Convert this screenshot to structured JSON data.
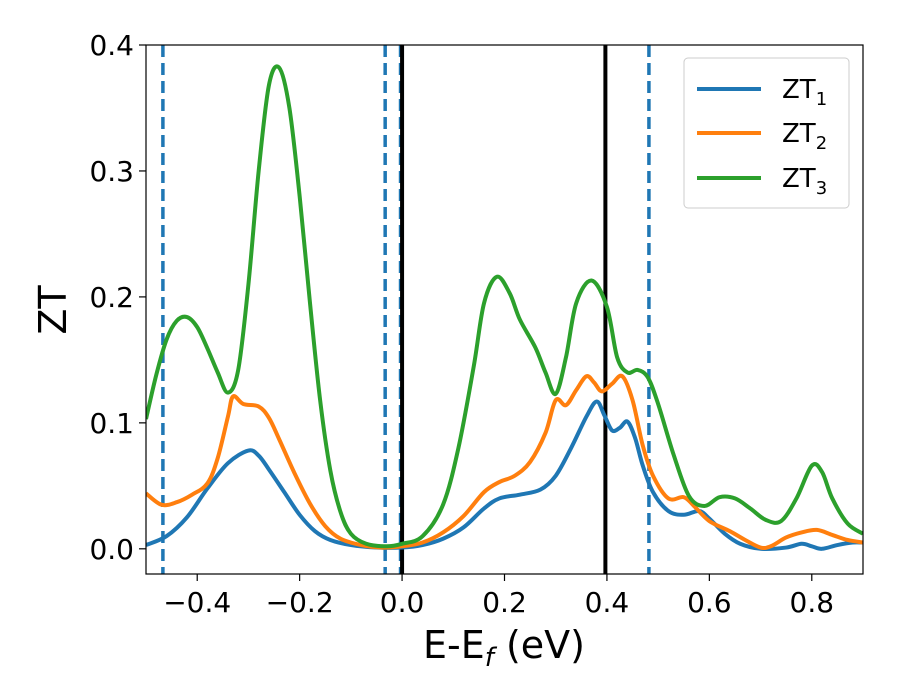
{
  "chart_data": {
    "type": "line",
    "xlabel": "E-E",
    "xlabel_sub": "f",
    "xlabel_unit": " (eV)",
    "ylabel": "ZT",
    "xlim": [
      -0.5,
      0.9
    ],
    "ylim": [
      -0.02,
      0.4
    ],
    "xticks": [
      -0.4,
      -0.2,
      0.0,
      0.2,
      0.4,
      0.6,
      0.8
    ],
    "xtick_labels": [
      "−0.4",
      "−0.2",
      "0.0",
      "0.2",
      "0.4",
      "0.6",
      "0.8"
    ],
    "yticks": [
      0.0,
      0.1,
      0.2,
      0.3,
      0.4
    ],
    "ytick_labels": [
      "0.0",
      "0.1",
      "0.2",
      "0.3",
      "0.4"
    ],
    "grid": false,
    "legend_position": "top-right",
    "vlines": [
      {
        "x": -0.467,
        "style": "dashed",
        "color": "#1f77b4"
      },
      {
        "x": -0.033,
        "style": "dashed",
        "color": "#1f77b4"
      },
      {
        "x": -0.003,
        "style": "dashed",
        "color": "#1f77b4"
      },
      {
        "x": 0.0,
        "style": "solid",
        "color": "#000000"
      },
      {
        "x": 0.397,
        "style": "solid",
        "color": "#000000"
      },
      {
        "x": 0.482,
        "style": "dashed",
        "color": "#1f77b4"
      }
    ],
    "series": [
      {
        "name": "ZT",
        "name_sub": "1",
        "color": "#1f77b4",
        "points": [
          [
            -0.5,
            0.003
          ],
          [
            -0.46,
            0.01
          ],
          [
            -0.42,
            0.025
          ],
          [
            -0.38,
            0.048
          ],
          [
            -0.34,
            0.068
          ],
          [
            -0.3,
            0.078
          ],
          [
            -0.28,
            0.074
          ],
          [
            -0.26,
            0.063
          ],
          [
            -0.23,
            0.045
          ],
          [
            -0.2,
            0.027
          ],
          [
            -0.17,
            0.014
          ],
          [
            -0.14,
            0.007
          ],
          [
            -0.1,
            0.003
          ],
          [
            -0.05,
            0.001
          ],
          [
            0.0,
            0.001
          ],
          [
            0.04,
            0.003
          ],
          [
            0.08,
            0.008
          ],
          [
            0.12,
            0.017
          ],
          [
            0.16,
            0.032
          ],
          [
            0.19,
            0.04
          ],
          [
            0.23,
            0.043
          ],
          [
            0.27,
            0.047
          ],
          [
            0.3,
            0.058
          ],
          [
            0.33,
            0.08
          ],
          [
            0.36,
            0.105
          ],
          [
            0.38,
            0.117
          ],
          [
            0.395,
            0.106
          ],
          [
            0.41,
            0.094
          ],
          [
            0.425,
            0.096
          ],
          [
            0.44,
            0.101
          ],
          [
            0.455,
            0.088
          ],
          [
            0.47,
            0.066
          ],
          [
            0.49,
            0.045
          ],
          [
            0.52,
            0.03
          ],
          [
            0.55,
            0.027
          ],
          [
            0.58,
            0.03
          ],
          [
            0.6,
            0.024
          ],
          [
            0.63,
            0.012
          ],
          [
            0.66,
            0.004
          ],
          [
            0.7,
            0.0
          ],
          [
            0.75,
            0.001
          ],
          [
            0.78,
            0.004
          ],
          [
            0.8,
            0.002
          ],
          [
            0.82,
            0.0
          ],
          [
            0.85,
            0.003
          ],
          [
            0.88,
            0.005
          ],
          [
            0.9,
            0.005
          ]
        ]
      },
      {
        "name": "ZT",
        "name_sub": "2",
        "color": "#ff7f0e",
        "points": [
          [
            -0.5,
            0.044
          ],
          [
            -0.47,
            0.035
          ],
          [
            -0.44,
            0.037
          ],
          [
            -0.41,
            0.043
          ],
          [
            -0.38,
            0.052
          ],
          [
            -0.36,
            0.072
          ],
          [
            -0.34,
            0.105
          ],
          [
            -0.33,
            0.121
          ],
          [
            -0.31,
            0.115
          ],
          [
            -0.28,
            0.113
          ],
          [
            -0.26,
            0.104
          ],
          [
            -0.24,
            0.087
          ],
          [
            -0.21,
            0.06
          ],
          [
            -0.18,
            0.036
          ],
          [
            -0.15,
            0.018
          ],
          [
            -0.12,
            0.008
          ],
          [
            -0.08,
            0.003
          ],
          [
            -0.04,
            0.001
          ],
          [
            0.0,
            0.002
          ],
          [
            0.04,
            0.005
          ],
          [
            0.08,
            0.013
          ],
          [
            0.12,
            0.026
          ],
          [
            0.16,
            0.045
          ],
          [
            0.19,
            0.053
          ],
          [
            0.22,
            0.058
          ],
          [
            0.25,
            0.069
          ],
          [
            0.28,
            0.092
          ],
          [
            0.3,
            0.118
          ],
          [
            0.32,
            0.114
          ],
          [
            0.34,
            0.126
          ],
          [
            0.36,
            0.137
          ],
          [
            0.375,
            0.132
          ],
          [
            0.39,
            0.125
          ],
          [
            0.41,
            0.131
          ],
          [
            0.43,
            0.137
          ],
          [
            0.45,
            0.118
          ],
          [
            0.47,
            0.082
          ],
          [
            0.49,
            0.058
          ],
          [
            0.52,
            0.04
          ],
          [
            0.55,
            0.041
          ],
          [
            0.57,
            0.034
          ],
          [
            0.6,
            0.022
          ],
          [
            0.64,
            0.014
          ],
          [
            0.67,
            0.007
          ],
          [
            0.7,
            0.001
          ],
          [
            0.72,
            0.002
          ],
          [
            0.75,
            0.009
          ],
          [
            0.78,
            0.013
          ],
          [
            0.81,
            0.015
          ],
          [
            0.84,
            0.011
          ],
          [
            0.87,
            0.007
          ],
          [
            0.9,
            0.005
          ]
        ]
      },
      {
        "name": "ZT",
        "name_sub": "3",
        "color": "#2ca02c",
        "points": [
          [
            -0.5,
            0.103
          ],
          [
            -0.48,
            0.138
          ],
          [
            -0.46,
            0.166
          ],
          [
            -0.44,
            0.181
          ],
          [
            -0.42,
            0.184
          ],
          [
            -0.4,
            0.176
          ],
          [
            -0.38,
            0.159
          ],
          [
            -0.36,
            0.14
          ],
          [
            -0.34,
            0.124
          ],
          [
            -0.32,
            0.142
          ],
          [
            -0.3,
            0.21
          ],
          [
            -0.28,
            0.3
          ],
          [
            -0.26,
            0.368
          ],
          [
            -0.24,
            0.382
          ],
          [
            -0.22,
            0.35
          ],
          [
            -0.2,
            0.28
          ],
          [
            -0.18,
            0.196
          ],
          [
            -0.16,
            0.118
          ],
          [
            -0.14,
            0.062
          ],
          [
            -0.12,
            0.029
          ],
          [
            -0.1,
            0.012
          ],
          [
            -0.07,
            0.004
          ],
          [
            -0.03,
            0.002
          ],
          [
            0.0,
            0.004
          ],
          [
            0.04,
            0.01
          ],
          [
            0.08,
            0.035
          ],
          [
            0.11,
            0.08
          ],
          [
            0.14,
            0.145
          ],
          [
            0.16,
            0.195
          ],
          [
            0.185,
            0.216
          ],
          [
            0.21,
            0.203
          ],
          [
            0.23,
            0.182
          ],
          [
            0.26,
            0.16
          ],
          [
            0.28,
            0.14
          ],
          [
            0.3,
            0.123
          ],
          [
            0.32,
            0.152
          ],
          [
            0.34,
            0.195
          ],
          [
            0.37,
            0.213
          ],
          [
            0.4,
            0.192
          ],
          [
            0.42,
            0.152
          ],
          [
            0.44,
            0.14
          ],
          [
            0.46,
            0.142
          ],
          [
            0.48,
            0.136
          ],
          [
            0.5,
            0.115
          ],
          [
            0.53,
            0.075
          ],
          [
            0.56,
            0.042
          ],
          [
            0.59,
            0.034
          ],
          [
            0.62,
            0.041
          ],
          [
            0.65,
            0.04
          ],
          [
            0.68,
            0.032
          ],
          [
            0.71,
            0.023
          ],
          [
            0.74,
            0.022
          ],
          [
            0.77,
            0.04
          ],
          [
            0.8,
            0.066
          ],
          [
            0.82,
            0.061
          ],
          [
            0.84,
            0.04
          ],
          [
            0.87,
            0.02
          ],
          [
            0.9,
            0.012
          ]
        ]
      }
    ]
  }
}
